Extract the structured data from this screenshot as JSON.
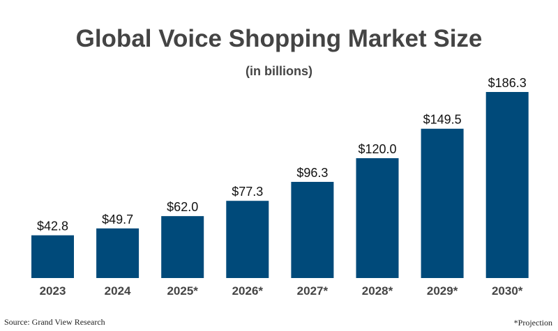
{
  "chart_data": {
    "type": "bar",
    "title": "Global Voice Shopping Market Size",
    "subtitle": "(in billions)",
    "categories": [
      "2023",
      "2024",
      "2025*",
      "2026*",
      "2027*",
      "2028*",
      "2029*",
      "2030*"
    ],
    "values": [
      42.8,
      49.7,
      62.0,
      77.3,
      96.3,
      120.0,
      149.5,
      186.3
    ],
    "data_labels": [
      "$42.8",
      "$49.7",
      "$62.0",
      "$77.3",
      "$96.3",
      "$120.0",
      "$149.5",
      "$186.3"
    ],
    "xlabel": "",
    "ylabel": "",
    "ylim": [
      0,
      186.3
    ],
    "grid": false,
    "bar_color": "#004a7a"
  },
  "footer": {
    "source": "Source: Grand View Research",
    "note": "*Projection"
  }
}
